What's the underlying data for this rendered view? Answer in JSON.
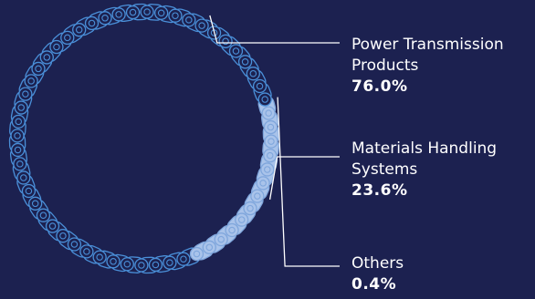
{
  "colors": {
    "background": "#1c2150",
    "chain_outline": "#4a8fd8",
    "highlight_fill": "#a9c3ea",
    "highlight_outline": "#7fa6dc",
    "others_fill": "#f5f8ff",
    "leader_line": "#ffffff",
    "text": "#ffffff"
  },
  "chart_data": {
    "type": "pie",
    "style": "chain-ring",
    "slices": [
      {
        "name_lines": [
          "Power Transmission",
          "Products"
        ],
        "value": 76.0,
        "value_label": "76.0%"
      },
      {
        "name_lines": [
          "Materials Handling",
          "Systems"
        ],
        "value": 23.6,
        "value_label": "23.6%"
      },
      {
        "name_lines": [
          "Others"
        ],
        "value": 0.4,
        "value_label": "0.4%"
      }
    ]
  }
}
